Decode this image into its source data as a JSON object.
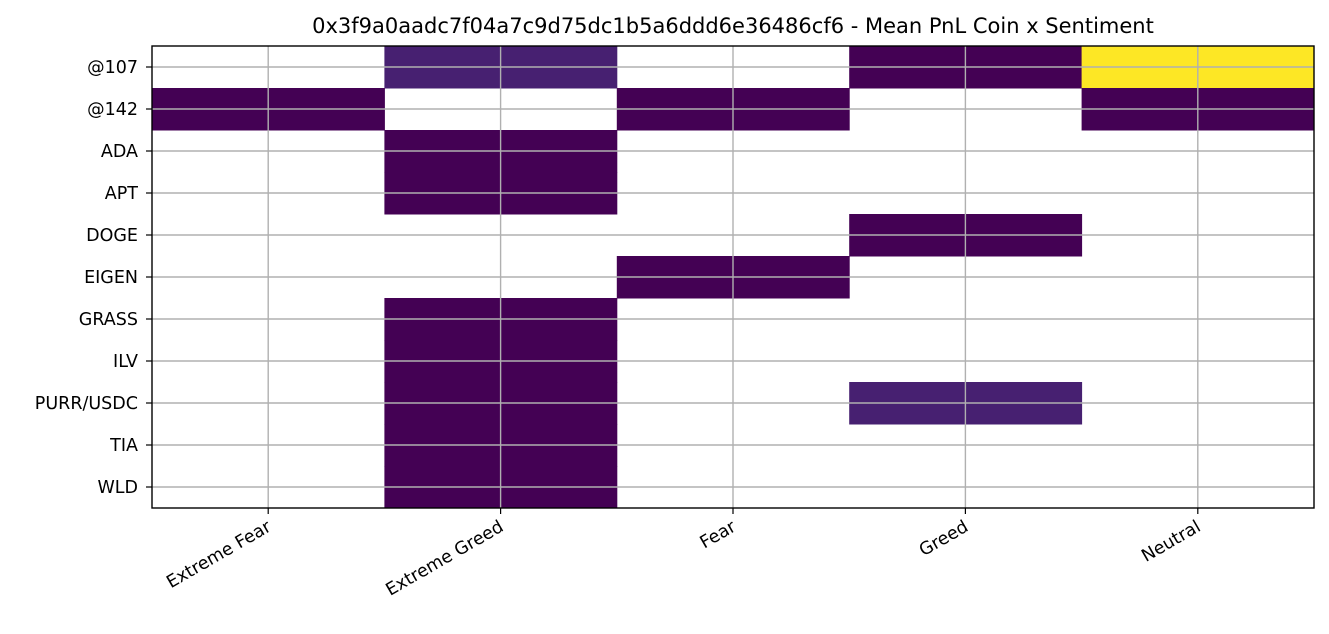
{
  "chart_data": {
    "type": "heatmap",
    "title": "0x3f9a0aadc7f04a7c9d75dc1b5a6ddd6e36486cf6 - Mean PnL Coin x Sentiment",
    "xlabel": "",
    "ylabel": "",
    "x_categories": [
      "Extreme Fear",
      "Extreme Greed",
      "Fear",
      "Greed",
      "Neutral"
    ],
    "y_categories": [
      "@107",
      "@142",
      "ADA",
      "APT",
      "DOGE",
      "EIGEN",
      "GRASS",
      "ILV",
      "PURR/USDC",
      "TIA",
      "WLD"
    ],
    "colormap": "viridis",
    "color_scale_note": "relative values normalized 0-1; blank cells are missing",
    "grid": true,
    "values": [
      [
        null,
        0.08,
        null,
        0.0,
        1.0
      ],
      [
        0.0,
        null,
        0.0,
        null,
        0.0
      ],
      [
        null,
        0.0,
        null,
        null,
        null
      ],
      [
        null,
        0.0,
        null,
        null,
        null
      ],
      [
        null,
        null,
        null,
        0.0,
        null
      ],
      [
        null,
        null,
        0.0,
        null,
        null
      ],
      [
        null,
        0.0,
        null,
        null,
        null
      ],
      [
        null,
        0.0,
        null,
        null,
        null
      ],
      [
        null,
        0.0,
        null,
        0.08,
        null
      ],
      [
        null,
        0.0,
        null,
        null,
        null
      ],
      [
        null,
        0.0,
        null,
        null,
        null
      ]
    ],
    "colors": {
      "low": "#440154",
      "mid_low": "#482878",
      "high": "#fde725"
    }
  }
}
